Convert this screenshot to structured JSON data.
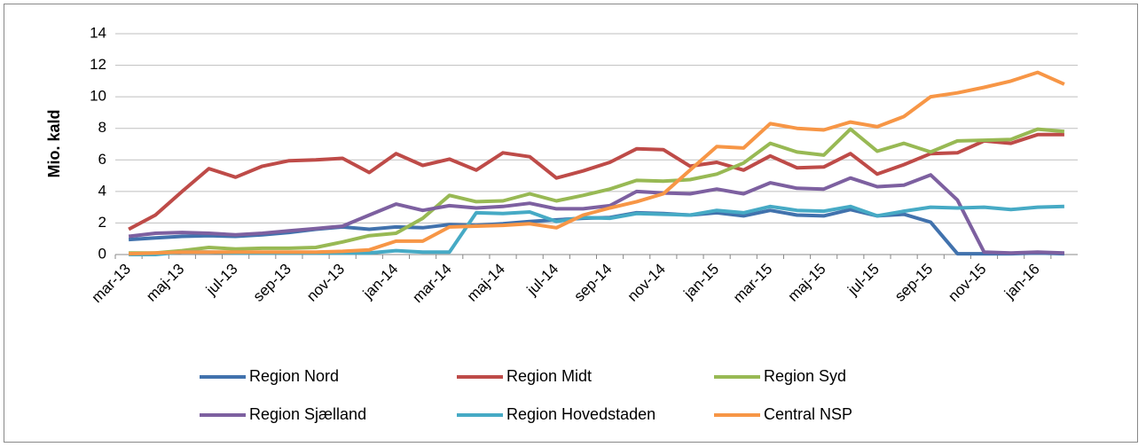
{
  "chart_data": {
    "type": "line",
    "y_label": "Mio. kald",
    "categories": [
      "mar-13",
      null,
      "maj-13",
      null,
      "jul-13",
      null,
      "sep-13",
      null,
      "nov-13",
      null,
      "jan-14",
      null,
      "mar-14",
      null,
      "maj-14",
      null,
      "jul-14",
      null,
      "sep-14",
      null,
      "nov-14",
      null,
      "jan-15",
      null,
      "mar-15",
      null,
      "maj-15",
      null,
      "jul-15",
      null,
      "sep-15",
      null,
      "nov-15",
      null,
      "jan-16",
      null
    ],
    "series": [
      {
        "name": "Region Nord",
        "color": "#4172ad",
        "values": [
          0.95,
          1.05,
          1.15,
          1.2,
          1.15,
          1.25,
          1.4,
          1.6,
          1.75,
          1.6,
          1.75,
          1.7,
          1.9,
          1.85,
          1.95,
          2.1,
          2.2,
          2.3,
          2.35,
          2.65,
          2.6,
          2.5,
          2.65,
          2.45,
          2.8,
          2.5,
          2.45,
          2.85,
          2.45,
          2.55,
          2.05,
          0.05,
          0.05,
          0.05,
          0.1,
          0.05
        ]
      },
      {
        "name": "Region Midt",
        "color": "#be4b48",
        "values": [
          1.6,
          2.5,
          4.0,
          5.45,
          4.9,
          5.6,
          5.95,
          6.0,
          6.1,
          5.2,
          6.4,
          5.65,
          6.05,
          5.35,
          6.45,
          6.2,
          4.85,
          5.3,
          5.85,
          6.7,
          6.65,
          5.6,
          5.85,
          5.35,
          6.25,
          5.5,
          5.55,
          6.4,
          5.1,
          5.7,
          6.4,
          6.45,
          7.2,
          7.05,
          7.6,
          7.6
        ]
      },
      {
        "name": "Region Syd",
        "color": "#98b954",
        "values": [
          0.1,
          0.1,
          0.25,
          0.45,
          0.35,
          0.4,
          0.4,
          0.45,
          0.8,
          1.2,
          1.35,
          2.3,
          3.75,
          3.35,
          3.4,
          3.85,
          3.4,
          3.75,
          4.15,
          4.7,
          4.65,
          4.75,
          5.1,
          5.8,
          7.05,
          6.5,
          6.3,
          7.95,
          6.55,
          7.05,
          6.5,
          7.2,
          7.25,
          7.3,
          7.95,
          7.8
        ]
      },
      {
        "name": "Region Sjælland",
        "color": "#7d60a0",
        "values": [
          1.15,
          1.35,
          1.4,
          1.35,
          1.25,
          1.35,
          1.5,
          1.65,
          1.8,
          2.5,
          3.2,
          2.8,
          3.1,
          2.95,
          3.05,
          3.25,
          2.9,
          2.9,
          3.1,
          4.0,
          3.9,
          3.85,
          4.15,
          3.85,
          4.55,
          4.2,
          4.15,
          4.85,
          4.3,
          4.4,
          5.05,
          3.45,
          0.15,
          0.1,
          0.15,
          0.1
        ]
      },
      {
        "name": "Region Hovedstaden",
        "color": "#46aac5",
        "values": [
          0.0,
          0.0,
          0.15,
          0.15,
          0.1,
          0.1,
          0.1,
          0.1,
          0.1,
          0.1,
          0.25,
          0.15,
          0.15,
          2.65,
          2.6,
          2.7,
          2.1,
          2.35,
          2.3,
          2.6,
          2.55,
          2.5,
          2.8,
          2.65,
          3.05,
          2.8,
          2.75,
          3.05,
          2.45,
          2.75,
          3.0,
          2.95,
          3.0,
          2.85,
          3.0,
          3.05
        ]
      },
      {
        "name": "Central NSP",
        "color": "#f79646",
        "values": [
          0.05,
          0.1,
          0.15,
          0.15,
          0.15,
          0.15,
          0.15,
          0.15,
          0.2,
          0.3,
          0.85,
          0.85,
          1.75,
          1.8,
          1.85,
          1.95,
          1.7,
          2.5,
          2.95,
          3.35,
          3.85,
          5.35,
          6.85,
          6.75,
          8.3,
          8.0,
          7.9,
          8.4,
          8.1,
          8.75,
          10.0,
          10.25,
          10.6,
          11.0,
          11.55,
          10.8
        ]
      }
    ],
    "ylim": [
      0,
      14
    ],
    "yticks": [
      0,
      2,
      4,
      6,
      8,
      10,
      12,
      14
    ],
    "grid": true,
    "legend": "bottom"
  }
}
